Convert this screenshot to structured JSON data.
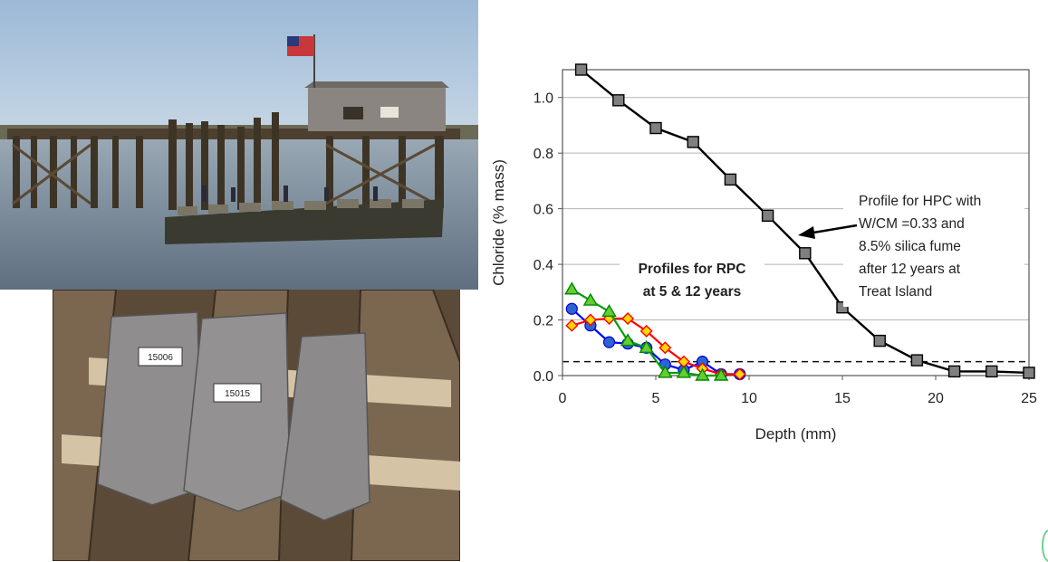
{
  "photos": {
    "pier": "pier-photo",
    "specimens": "specimens-photo",
    "specimen_labels": [
      "15006",
      "15015"
    ]
  },
  "chart_data": {
    "type": "line",
    "xlabel": "Depth (mm)",
    "ylabel": "Chloride (% mass)",
    "xlim": [
      0,
      25
    ],
    "ylim": [
      0,
      1.1
    ],
    "xticks": [
      "0",
      "5",
      "10",
      "15",
      "20",
      "25"
    ],
    "yticks": [
      "0.0",
      "0.2",
      "0.4",
      "0.6",
      "0.8",
      "1.0"
    ],
    "grid": "horizontal",
    "threshold": 0.05,
    "series": [
      {
        "color": "#000000",
        "marker": "square",
        "marker_color": "#808080",
        "x": [
          1,
          3,
          5,
          7,
          9,
          11,
          13,
          15,
          17,
          19,
          21,
          23,
          25
        ],
        "y": [
          1.1,
          0.99,
          0.89,
          0.84,
          0.705,
          0.575,
          0.44,
          0.245,
          0.125,
          0.055,
          0.015,
          0.015,
          0.01
        ]
      },
      {
        "color": "#0000ff",
        "marker": "circle",
        "marker_color": "#2d63d3",
        "x": [
          0.5,
          1.5,
          2.5,
          3.5,
          4.5,
          5.5,
          6.5,
          7.5,
          8.5,
          9.5
        ],
        "y": [
          0.24,
          0.18,
          0.12,
          0.115,
          0.1,
          0.04,
          0.02,
          0.05,
          0.005,
          0.005
        ]
      },
      {
        "color": "#ff0000",
        "marker": "diamond",
        "marker_color": "#ffd700",
        "x": [
          0.5,
          1.5,
          2.5,
          3.5,
          4.5,
          5.5,
          6.5,
          7.5,
          8.5,
          9.5
        ],
        "y": [
          0.18,
          0.2,
          0.205,
          0.205,
          0.16,
          0.1,
          0.05,
          0.025,
          0.005,
          0.005
        ]
      },
      {
        "color": "#00a000",
        "marker": "triangle",
        "marker_color": "#66cc33",
        "x": [
          0.5,
          1.5,
          2.5,
          3.5,
          4.5,
          5.5,
          6.5,
          7.5,
          8.5
        ],
        "y": [
          0.31,
          0.27,
          0.23,
          0.125,
          0.1,
          0.01,
          0.01,
          0,
          0
        ]
      }
    ],
    "annotations": [
      {
        "lines": [
          "Profile for HPC with",
          "W/CM =0.33 and",
          "8.5% silica fume",
          "after 12 years at",
          "Treat Island"
        ],
        "color": "#333333"
      },
      {
        "lines": [
          "Profiles for RPC",
          "at 5 & 12 years"
        ],
        "color": "#ff2020"
      }
    ]
  }
}
